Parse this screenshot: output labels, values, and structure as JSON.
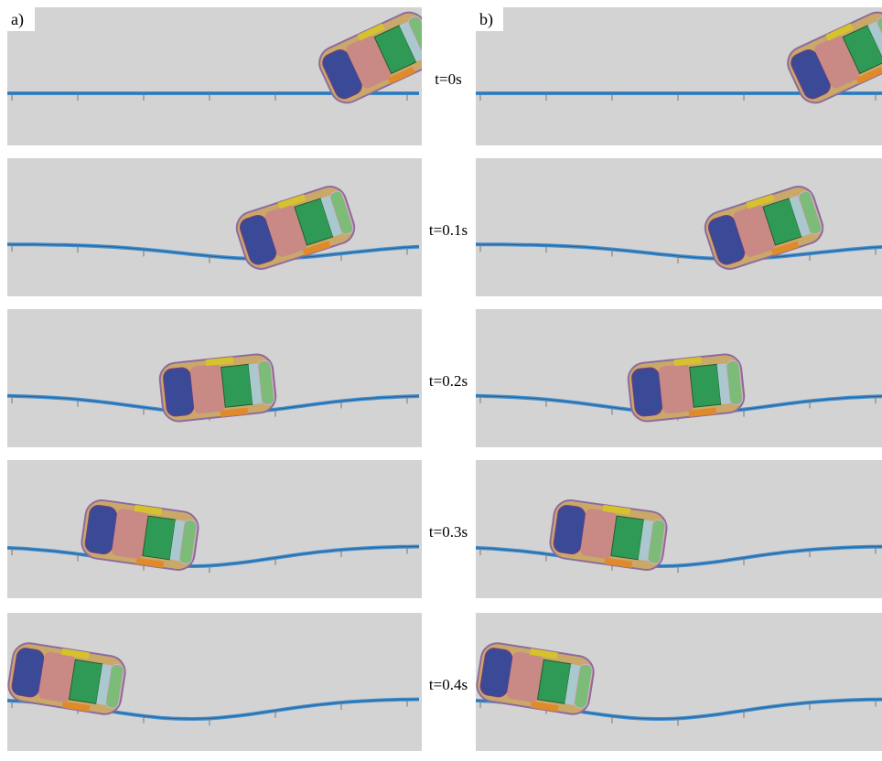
{
  "columns": [
    {
      "label": "a)"
    },
    {
      "label": "b)"
    }
  ],
  "rows": [
    {
      "time": "t=0s"
    },
    {
      "time": "t=0.1s"
    },
    {
      "time": "t=0.2s"
    },
    {
      "time": "t=0.3s"
    },
    {
      "time": "t=0.4s"
    }
  ]
}
